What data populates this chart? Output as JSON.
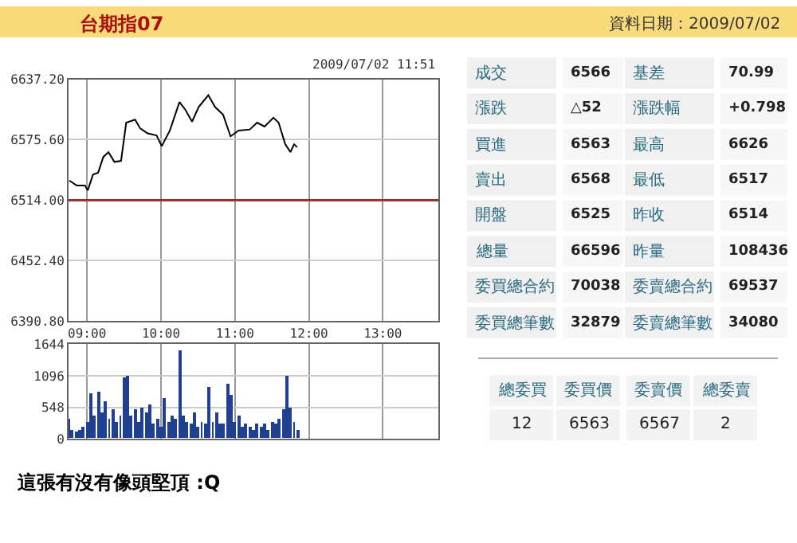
{
  "chart_data": [
    {
      "type": "line",
      "title": "台期指07",
      "subtitle": "2009/07/02 11:51",
      "x": [
        8.76,
        8.86,
        8.97,
        9.01,
        9.08,
        9.15,
        9.22,
        9.29,
        9.37,
        9.46,
        9.53,
        9.65,
        9.72,
        9.82,
        9.94,
        10.01,
        10.12,
        10.25,
        10.33,
        10.42,
        10.51,
        10.64,
        10.73,
        10.84,
        10.94,
        11.05,
        11.2,
        11.3,
        11.4,
        11.52,
        11.59,
        11.68,
        11.75,
        11.8,
        11.84
      ],
      "series": [
        {
          "color": "#000000",
          "values": [
            6534,
            6529,
            6529,
            6524,
            6540,
            6542,
            6558,
            6563,
            6553,
            6554,
            6593,
            6596,
            6587,
            6582,
            6580,
            6569,
            6585,
            6614,
            6606,
            6594,
            6609,
            6621,
            6609,
            6601,
            6579,
            6585,
            6586,
            6593,
            6589,
            6598,
            6593,
            6571,
            6563,
            6571,
            6568
          ]
        }
      ],
      "xlim": [
        8.75,
        13.75
      ],
      "xticks": [
        {
          "value": 9,
          "label": "09:00"
        },
        {
          "value": 10,
          "label": "10:00"
        },
        {
          "value": 11,
          "label": "11:00"
        },
        {
          "value": 12,
          "label": "12:00"
        },
        {
          "value": 13,
          "label": "13:00"
        }
      ],
      "ylim": [
        6390.8,
        6637.2
      ],
      "yticks": [
        {
          "value": 6390.8,
          "label": "6390.80"
        },
        {
          "value": 6452.4,
          "label": "6452.40"
        },
        {
          "value": 6514,
          "label": "6514.00"
        },
        {
          "value": 6575.6,
          "label": "6575.60"
        },
        {
          "value": 6637.2,
          "label": "6637.20"
        }
      ],
      "ref_lines": [
        {
          "axis": "y",
          "value": 6514,
          "color": "#993333"
        }
      ],
      "grid": true
    },
    {
      "type": "bar",
      "x": [
        8.75,
        8.8,
        8.85,
        8.9,
        8.95,
        9.0,
        9.05,
        9.1,
        9.15,
        9.2,
        9.25,
        9.3,
        9.35,
        9.4,
        9.45,
        9.5,
        9.55,
        9.6,
        9.65,
        9.7,
        9.75,
        9.8,
        9.85,
        9.9,
        9.95,
        10.0,
        10.05,
        10.1,
        10.15,
        10.2,
        10.25,
        10.3,
        10.35,
        10.4,
        10.45,
        10.5,
        10.55,
        10.6,
        10.65,
        10.7,
        10.75,
        10.8,
        10.85,
        10.9,
        10.95,
        11.0,
        11.05,
        11.1,
        11.15,
        11.2,
        11.25,
        11.3,
        11.35,
        11.4,
        11.45,
        11.5,
        11.55,
        11.6,
        11.65,
        11.7,
        11.75,
        11.8,
        11.85
      ],
      "series": [
        {
          "color": "#1f3f8f",
          "values": [
            350,
            150,
            120,
            150,
            200,
            300,
            780,
            400,
            800,
            450,
            650,
            350,
            500,
            300,
            400,
            1050,
            1080,
            400,
            500,
            300,
            550,
            450,
            600,
            250,
            350,
            200,
            700,
            300,
            400,
            350,
            1530,
            400,
            300,
            250,
            450,
            200,
            300,
            250,
            900,
            300,
            450,
            250,
            250,
            950,
            750,
            300,
            400,
            200,
            250,
            200,
            150,
            250,
            200,
            250,
            150,
            300,
            250,
            350,
            500,
            1100,
            550,
            300,
            150
          ]
        }
      ],
      "xlim": [
        8.75,
        13.75
      ],
      "xticks": [
        9,
        10,
        11,
        12,
        13
      ],
      "ylim": [
        0,
        1644
      ],
      "yticks": [
        0,
        548,
        1096,
        1644
      ],
      "tick_labels": "y",
      "grid": true,
      "annotations": [
        "這張有沒有像頭堅頂 :Q"
      ]
    },
    {
      "type": "other",
      "title": "資料日期：2009/07/02",
      "annotations": [
        "成交",
        "6566",
        "基差",
        "70.99",
        "漲跌",
        "△52",
        "漲跌幅",
        "+0.798",
        "買進",
        "6563",
        "最高",
        "6626",
        "賣出",
        "6568",
        "最低",
        "6517",
        "開盤",
        "6525",
        "昨收",
        "6514",
        "總量",
        "66596",
        "昨量",
        "108436",
        "委買總合約",
        "70038",
        "委賣總合約",
        "69537",
        "委買總筆數",
        "32879",
        "委賣總筆數",
        "34080",
        "總委買",
        "委買價",
        "委賣價",
        "總委賣",
        "12",
        "6563",
        "6567",
        "2"
      ]
    }
  ]
}
